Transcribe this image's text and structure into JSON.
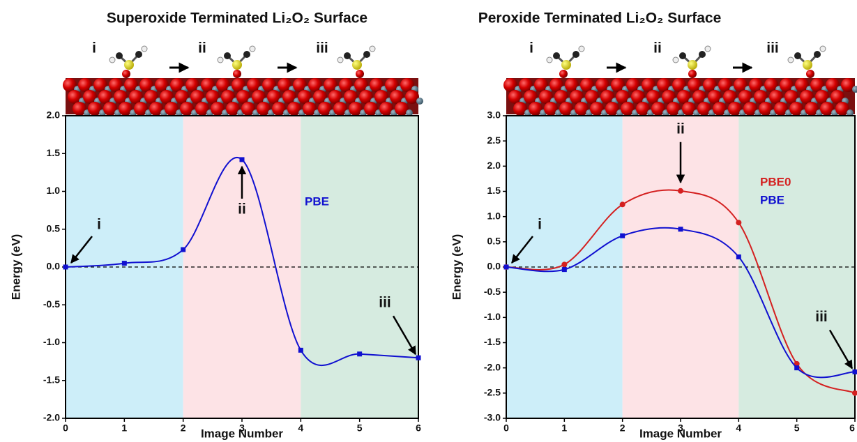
{
  "chart_data": [
    {
      "type": "line",
      "title": "Superoxide Terminated Li₂O₂ Surface",
      "stage_labels": [
        "i",
        "ii",
        "iii"
      ],
      "annotations": [
        "i",
        "ii",
        "iii"
      ],
      "xlabel": "Image Number",
      "ylabel": "Energy (eV)",
      "x": [
        0,
        1,
        2,
        3,
        4,
        5,
        6
      ],
      "series": [
        {
          "name": "PBE",
          "color": "#1010d0",
          "marker": "square",
          "values": [
            0,
            0.05,
            0.23,
            1.42,
            -1.1,
            -1.15,
            -1.2
          ]
        }
      ],
      "xlim": [
        0,
        6
      ],
      "xticks": [
        0,
        1,
        2,
        3,
        4,
        5,
        6
      ],
      "ylim": [
        -2,
        2
      ],
      "yticks": [
        {
          "value": -2,
          "label": "-2.0"
        },
        -1.5,
        {
          "value": -1,
          "label": "-1.0"
        },
        -0.5,
        {
          "value": 0,
          "label": "0.0"
        },
        0.5,
        {
          "value": 1,
          "label": "1.0"
        },
        1.5,
        {
          "value": 2,
          "label": "2.0"
        }
      ],
      "reference_line": 0,
      "regions": [
        {
          "x": [
            0,
            2
          ],
          "color": "#cdeef9"
        },
        {
          "x": [
            2,
            4
          ],
          "color": "#fde3e6"
        },
        {
          "x": [
            4,
            6
          ],
          "color": "#d6ebe0"
        }
      ]
    },
    {
      "type": "line",
      "title": "Peroxide Terminated Li₂O₂ Surface",
      "stage_labels": [
        "i",
        "ii",
        "iii"
      ],
      "annotations": [
        "i",
        "ii",
        "iii"
      ],
      "xlabel": "Image Number",
      "ylabel": "Energy (eV)",
      "x": [
        0,
        1,
        2,
        3,
        4,
        5,
        6
      ],
      "series": [
        {
          "name": "PBE0",
          "color": "#d42020",
          "marker": "circle",
          "values": [
            0,
            0.05,
            1.24,
            1.51,
            0.88,
            -1.92,
            -2.5
          ]
        },
        {
          "name": "PBE",
          "color": "#1010d0",
          "marker": "square",
          "values": [
            0,
            -0.05,
            0.62,
            0.75,
            0.2,
            -2.0,
            -2.08
          ]
        }
      ],
      "xlim": [
        0,
        6
      ],
      "xticks": [
        0,
        1,
        2,
        3,
        4,
        5,
        6
      ],
      "ylim": [
        -3,
        3
      ],
      "yticks": [
        {
          "value": -3,
          "label": "-3.0"
        },
        -2.5,
        {
          "value": -2,
          "label": "-2.0"
        },
        -1.5,
        {
          "value": -1,
          "label": "-1.0"
        },
        -0.5,
        {
          "value": 0,
          "label": "0.0"
        },
        0.5,
        {
          "value": 1,
          "label": "1.0"
        },
        1.5,
        {
          "value": 2,
          "label": "2.0"
        },
        2.5,
        {
          "value": 3,
          "label": "3.0"
        }
      ],
      "reference_line": 0,
      "regions": [
        {
          "x": [
            0,
            2
          ],
          "color": "#cdeef9"
        },
        {
          "x": [
            2,
            4
          ],
          "color": "#fde3e6"
        },
        {
          "x": [
            4,
            6
          ],
          "color": "#d6ebe0"
        }
      ]
    }
  ]
}
